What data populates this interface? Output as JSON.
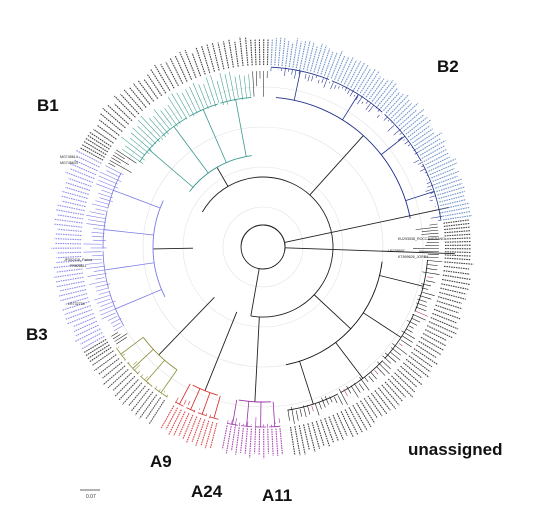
{
  "figure": {
    "clade_labels": {
      "b2": "B2",
      "b1": "B1",
      "b3": "B3",
      "a9": "A9",
      "a24": "A24",
      "a11": "A11",
      "unassigned": "unassigned"
    },
    "scale_bar_label": "0.07",
    "named_tips": [
      "EU293538_ROCCAVERANO",
      "KT899626_JORD1",
      "LR732734",
      "LR735697",
      "JF502416_Farina",
      "FR828811",
      "MG745614",
      "MG745633"
    ]
  },
  "clade_colors": {
    "b2": "#1f2f8a",
    "b2_tips": "#5c86c2",
    "b1": "#3a9a8e",
    "b3": "#7b7be8",
    "a9": "#8c8c3a",
    "a24": "#d62828",
    "a11": "#9b2fa8",
    "unassigned": "#111111",
    "unassigned_accent": "#b0306a",
    "backbone": "#222222"
  }
}
